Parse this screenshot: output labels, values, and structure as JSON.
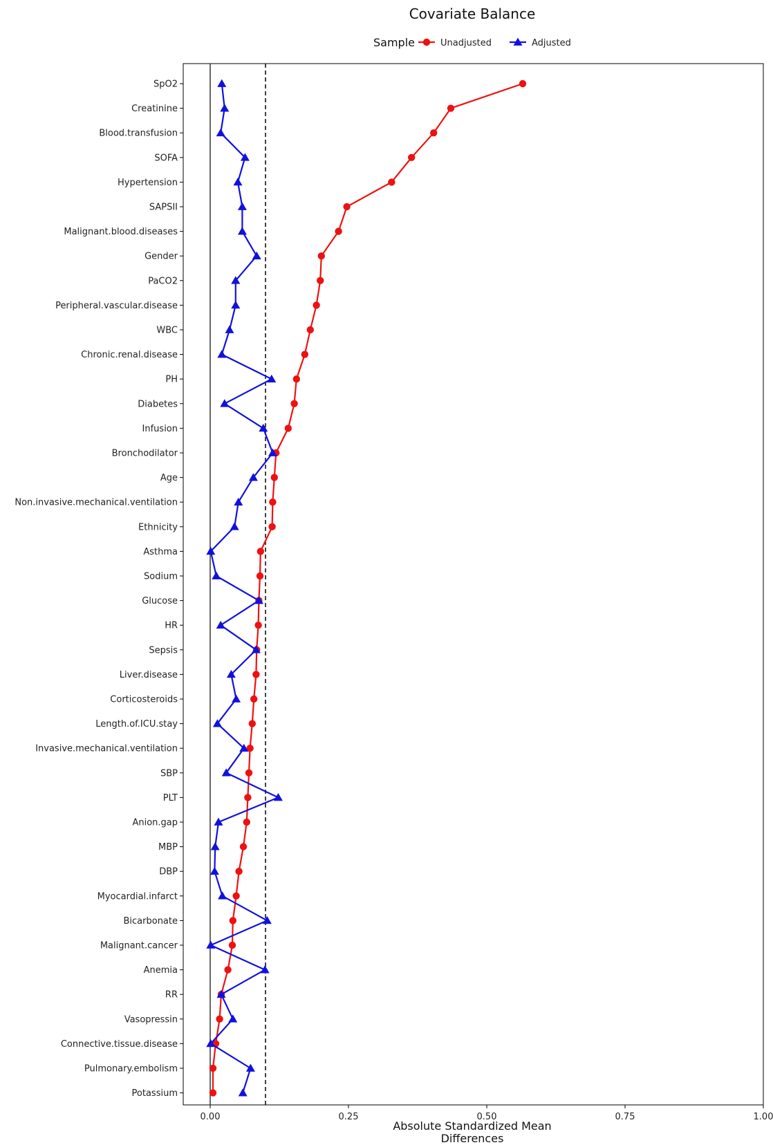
{
  "chart_data": {
    "type": "line",
    "title": "Covariate Balance",
    "xlabel_lines": [
      "Absolute Standardized Mean",
      "Differences"
    ],
    "ylabel": "",
    "xlim": [
      -0.05,
      1.0
    ],
    "xticks": [
      0.0,
      0.25,
      0.5,
      0.75,
      1.0
    ],
    "xtick_labels": [
      "0.00",
      "0.25",
      "0.50",
      "0.75",
      "1.00"
    ],
    "reference_lines": [
      {
        "x": 0.0,
        "style": "solid"
      },
      {
        "x": 0.1,
        "style": "dashed"
      }
    ],
    "legend": {
      "title": "Sample",
      "position": "top"
    },
    "categories": [
      "SpO2",
      "Creatinine",
      "Blood.transfusion",
      "SOFA",
      "Hypertension",
      "SAPSII",
      "Malignant.blood.diseases",
      "Gender",
      "PaCO2",
      "Peripheral.vascular.disease",
      "WBC",
      "Chronic.renal.disease",
      "PH",
      "Diabetes",
      "Infusion",
      "Bronchodilator",
      "Age",
      "Non.invasive.mechanical.ventilation",
      "Ethnicity",
      "Asthma",
      "Sodium",
      "Glucose",
      "HR",
      "Sepsis",
      "Liver.disease",
      "Corticosteroids",
      "Length.of.ICU.stay",
      "Invasive.mechanical.ventilation",
      "SBP",
      "PLT",
      "Anion.gap",
      "MBP",
      "DBP",
      "Myocardial.infarct",
      "Bicarbonate",
      "Malignant.cancer",
      "Anemia",
      "RR",
      "Vasopressin",
      "Connective.tissue.disease",
      "Pulmonary.embolism",
      "Potassium"
    ],
    "series": [
      {
        "name": "Unadjusted",
        "color": "#ee1111",
        "marker": "circle",
        "values": [
          0.565,
          0.435,
          0.404,
          0.364,
          0.328,
          0.247,
          0.232,
          0.201,
          0.199,
          0.192,
          0.181,
          0.171,
          0.156,
          0.152,
          0.141,
          0.119,
          0.116,
          0.113,
          0.112,
          0.091,
          0.09,
          0.088,
          0.087,
          0.084,
          0.083,
          0.079,
          0.076,
          0.072,
          0.07,
          0.068,
          0.066,
          0.06,
          0.052,
          0.047,
          0.041,
          0.04,
          0.032,
          0.02,
          0.017,
          0.01,
          0.005,
          0.005
        ]
      },
      {
        "name": "Adjusted",
        "color": "#1111dd",
        "marker": "triangle",
        "values": [
          0.021,
          0.026,
          0.019,
          0.063,
          0.05,
          0.058,
          0.058,
          0.084,
          0.046,
          0.046,
          0.035,
          0.021,
          0.111,
          0.026,
          0.096,
          0.113,
          0.078,
          0.051,
          0.044,
          0.001,
          0.011,
          0.088,
          0.019,
          0.083,
          0.038,
          0.047,
          0.013,
          0.061,
          0.029,
          0.123,
          0.015,
          0.009,
          0.008,
          0.022,
          0.103,
          0.001,
          0.099,
          0.02,
          0.041,
          0.001,
          0.073,
          0.059
        ]
      }
    ]
  }
}
